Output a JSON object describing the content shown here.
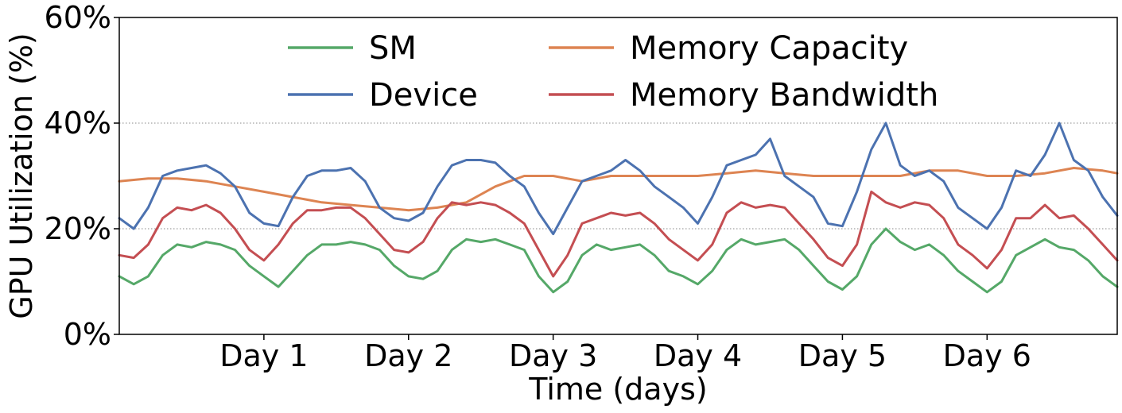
{
  "chart_data": {
    "type": "line",
    "xlabel": "Time (days)",
    "ylabel": "GPU Utilization (%)",
    "xlim": [
      0,
      6.9
    ],
    "ylim": [
      0,
      60
    ],
    "x_ticks": [
      {
        "value": 1,
        "label": "Day 1"
      },
      {
        "value": 2,
        "label": "Day 2"
      },
      {
        "value": 3,
        "label": "Day 3"
      },
      {
        "value": 4,
        "label": "Day 4"
      },
      {
        "value": 5,
        "label": "Day 5"
      },
      {
        "value": 6,
        "label": "Day 6"
      }
    ],
    "y_ticks": [
      {
        "value": 0,
        "label": "0%"
      },
      {
        "value": 20,
        "label": "20%"
      },
      {
        "value": 40,
        "label": "40%"
      },
      {
        "value": 60,
        "label": "60%"
      }
    ],
    "grid": "horizontal dotted at 20% and 40%",
    "legend": {
      "placement": "top-center",
      "columns": 2
    },
    "series": [
      {
        "name": "SM",
        "color": "#55a868",
        "x": [
          0,
          0.1,
          0.2,
          0.3,
          0.4,
          0.5,
          0.6,
          0.7,
          0.8,
          0.9,
          1.0,
          1.1,
          1.2,
          1.3,
          1.4,
          1.5,
          1.6,
          1.7,
          1.8,
          1.9,
          2.0,
          2.1,
          2.2,
          2.3,
          2.4,
          2.5,
          2.6,
          2.7,
          2.8,
          2.9,
          3.0,
          3.1,
          3.2,
          3.3,
          3.4,
          3.5,
          3.6,
          3.7,
          3.8,
          3.9,
          4.0,
          4.1,
          4.2,
          4.3,
          4.4,
          4.5,
          4.6,
          4.7,
          4.8,
          4.9,
          5.0,
          5.1,
          5.2,
          5.3,
          5.4,
          5.5,
          5.6,
          5.7,
          5.8,
          5.9,
          6.0,
          6.1,
          6.2,
          6.3,
          6.4,
          6.5,
          6.6,
          6.7,
          6.8,
          6.9
        ],
        "values": [
          11,
          9.5,
          11,
          15,
          17,
          16.5,
          17.5,
          17,
          16,
          13,
          11,
          9,
          12,
          15,
          17,
          17,
          17.5,
          17,
          16,
          13,
          11,
          10.5,
          12,
          16,
          18,
          17.5,
          18,
          17,
          16,
          11,
          8,
          10,
          15,
          17,
          16,
          16.5,
          17,
          15,
          12,
          11,
          9.5,
          12,
          16,
          18,
          17,
          17.5,
          18,
          16,
          13,
          10,
          8.5,
          11,
          17,
          20,
          17.5,
          16,
          17,
          15,
          12,
          10,
          8,
          10,
          15,
          16.5,
          18,
          16.5,
          16,
          14,
          11,
          9
        ]
      },
      {
        "name": "Device",
        "color": "#4c72b0",
        "x": [
          0,
          0.1,
          0.2,
          0.3,
          0.4,
          0.5,
          0.6,
          0.7,
          0.8,
          0.9,
          1.0,
          1.1,
          1.2,
          1.3,
          1.4,
          1.5,
          1.6,
          1.7,
          1.8,
          1.9,
          2.0,
          2.1,
          2.2,
          2.3,
          2.4,
          2.5,
          2.6,
          2.7,
          2.8,
          2.9,
          3.0,
          3.1,
          3.2,
          3.3,
          3.4,
          3.5,
          3.6,
          3.7,
          3.8,
          3.9,
          4.0,
          4.1,
          4.2,
          4.3,
          4.4,
          4.5,
          4.6,
          4.7,
          4.8,
          4.9,
          5.0,
          5.1,
          5.2,
          5.3,
          5.4,
          5.5,
          5.6,
          5.7,
          5.8,
          5.9,
          6.0,
          6.1,
          6.2,
          6.3,
          6.4,
          6.5,
          6.6,
          6.7,
          6.8,
          6.9
        ],
        "values": [
          22,
          20,
          24,
          30,
          31,
          31.5,
          32,
          30.5,
          28,
          23,
          21,
          20.5,
          26,
          30,
          31,
          31,
          31.5,
          29,
          24,
          22,
          21.5,
          23,
          28,
          32,
          33,
          33,
          32.5,
          30,
          28,
          23,
          19,
          24,
          29,
          30,
          31,
          33,
          31,
          28,
          26,
          24,
          21,
          26,
          32,
          33,
          34,
          37,
          30,
          28,
          26,
          21,
          20.5,
          27,
          35,
          40,
          32,
          30,
          31,
          29,
          24,
          22,
          20,
          24,
          31,
          30,
          34,
          40,
          33,
          31,
          26,
          22.5
        ]
      },
      {
        "name": "Memory Capacity",
        "color": "#dd8452",
        "x": [
          0,
          0.2,
          0.4,
          0.6,
          0.8,
          1.0,
          1.2,
          1.4,
          1.6,
          1.8,
          2.0,
          2.2,
          2.4,
          2.6,
          2.8,
          3.0,
          3.2,
          3.4,
          3.6,
          3.8,
          4.0,
          4.2,
          4.4,
          4.6,
          4.8,
          5.0,
          5.2,
          5.4,
          5.6,
          5.8,
          6.0,
          6.2,
          6.4,
          6.6,
          6.8,
          6.9
        ],
        "values": [
          29,
          29.5,
          29.5,
          29,
          28,
          27,
          26,
          25,
          24.5,
          24,
          23.5,
          24,
          25,
          28,
          30,
          30,
          29,
          30,
          30,
          30,
          30,
          30.5,
          31,
          30.5,
          30,
          30,
          30,
          30,
          31,
          31,
          30,
          30,
          30.5,
          31.5,
          31,
          30.5
        ]
      },
      {
        "name": "Memory Bandwidth",
        "color": "#c44e52",
        "x": [
          0,
          0.1,
          0.2,
          0.3,
          0.4,
          0.5,
          0.6,
          0.7,
          0.8,
          0.9,
          1.0,
          1.1,
          1.2,
          1.3,
          1.4,
          1.5,
          1.6,
          1.7,
          1.8,
          1.9,
          2.0,
          2.1,
          2.2,
          2.3,
          2.4,
          2.5,
          2.6,
          2.7,
          2.8,
          2.9,
          3.0,
          3.1,
          3.2,
          3.3,
          3.4,
          3.5,
          3.6,
          3.7,
          3.8,
          3.9,
          4.0,
          4.1,
          4.2,
          4.3,
          4.4,
          4.5,
          4.6,
          4.7,
          4.8,
          4.9,
          5.0,
          5.1,
          5.2,
          5.3,
          5.4,
          5.5,
          5.6,
          5.7,
          5.8,
          5.9,
          6.0,
          6.1,
          6.2,
          6.3,
          6.4,
          6.5,
          6.6,
          6.7,
          6.8,
          6.9
        ],
        "values": [
          15,
          14.5,
          17,
          22,
          24,
          23.5,
          24.5,
          23,
          20,
          16,
          14,
          17,
          21,
          23.5,
          23.5,
          24,
          24,
          22,
          19,
          16,
          15.5,
          17.5,
          22,
          25,
          24.5,
          25,
          24.5,
          23,
          21,
          16,
          11,
          15,
          21,
          22,
          23,
          22.5,
          23,
          21,
          18,
          16,
          14,
          17,
          23,
          25,
          24,
          24.5,
          24,
          21,
          18,
          14.5,
          13,
          17,
          27,
          25,
          24,
          25,
          24.5,
          22,
          17,
          15,
          12.5,
          16,
          22,
          22,
          24.5,
          22,
          22.5,
          20,
          17,
          14
        ]
      }
    ]
  }
}
